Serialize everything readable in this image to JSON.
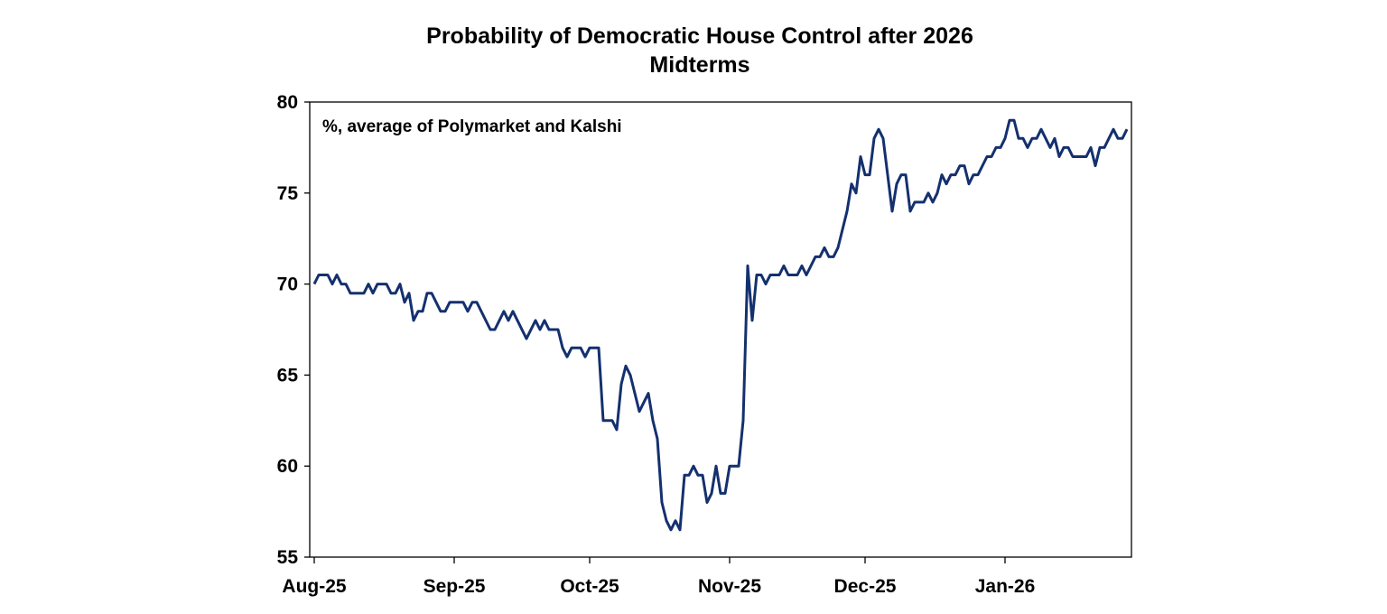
{
  "chart_data": {
    "type": "line",
    "title": "Probability of Democratic House Control after 2026",
    "title_line2": "Midterms",
    "annotation": "%, average of Polymarket and Kalshi",
    "xlabel": "",
    "ylabel": "",
    "ylim": [
      55,
      80
    ],
    "y_ticks": [
      55,
      60,
      65,
      70,
      75,
      80
    ],
    "xlim": [
      "2025-07-31",
      "2026-01-29"
    ],
    "x_ticks": [
      "2025-08-01",
      "2025-09-01",
      "2025-10-01",
      "2025-11-01",
      "2025-12-01",
      "2026-01-01"
    ],
    "x_tick_labels": [
      "Aug-25",
      "Sep-25",
      "Oct-25",
      "Nov-25",
      "Dec-25",
      "Jan-26"
    ],
    "grid": false,
    "line_color": "#14306e",
    "series": [
      {
        "x": [
          "2025-08-01",
          "2025-08-02",
          "2025-08-04",
          "2025-08-05",
          "2025-08-06",
          "2025-08-07",
          "2025-08-08",
          "2025-08-09",
          "2025-08-12",
          "2025-08-13",
          "2025-08-14",
          "2025-08-15",
          "2025-08-17",
          "2025-08-18",
          "2025-08-19",
          "2025-08-20",
          "2025-08-21",
          "2025-08-22",
          "2025-08-23",
          "2025-08-24",
          "2025-08-25",
          "2025-08-26",
          "2025-08-27",
          "2025-08-29",
          "2025-08-30",
          "2025-08-31",
          "2025-09-03",
          "2025-09-04",
          "2025-09-05",
          "2025-09-06",
          "2025-09-09",
          "2025-09-10",
          "2025-09-12",
          "2025-09-13",
          "2025-09-14",
          "2025-09-17",
          "2025-09-19",
          "2025-09-20",
          "2025-09-21",
          "2025-09-22",
          "2025-09-24",
          "2025-09-25",
          "2025-09-26",
          "2025-09-27",
          "2025-09-29",
          "2025-09-30",
          "2025-10-01",
          "2025-10-03",
          "2025-10-04",
          "2025-10-06",
          "2025-10-07",
          "2025-10-08",
          "2025-10-09",
          "2025-10-10",
          "2025-10-12",
          "2025-10-14",
          "2025-10-15",
          "2025-10-16",
          "2025-10-17",
          "2025-10-18",
          "2025-10-19",
          "2025-10-20",
          "2025-10-21",
          "2025-10-22",
          "2025-10-23",
          "2025-10-24",
          "2025-10-25",
          "2025-10-26",
          "2025-10-27",
          "2025-10-28",
          "2025-10-29",
          "2025-10-30",
          "2025-10-31",
          "2025-11-01",
          "2025-11-03",
          "2025-11-04",
          "2025-11-05",
          "2025-11-06",
          "2025-11-07",
          "2025-11-08",
          "2025-11-09",
          "2025-11-10",
          "2025-11-12",
          "2025-11-13",
          "2025-11-14",
          "2025-11-16",
          "2025-11-17",
          "2025-11-18",
          "2025-11-20",
          "2025-11-21",
          "2025-11-22",
          "2025-11-23",
          "2025-11-24",
          "2025-11-25",
          "2025-11-27",
          "2025-11-28",
          "2025-11-29",
          "2025-11-30",
          "2025-12-01",
          "2025-12-02",
          "2025-12-03",
          "2025-12-04",
          "2025-12-05",
          "2025-12-07",
          "2025-12-08",
          "2025-12-09",
          "2025-12-10",
          "2025-12-11",
          "2025-12-12",
          "2025-12-14",
          "2025-12-15",
          "2025-12-16",
          "2025-12-17",
          "2025-12-18",
          "2025-12-19",
          "2025-12-20",
          "2025-12-21",
          "2025-12-22",
          "2025-12-23",
          "2025-12-24",
          "2025-12-25",
          "2025-12-26",
          "2025-12-28",
          "2025-12-29",
          "2025-12-30",
          "2025-12-31",
          "2026-01-01",
          "2026-01-02",
          "2026-01-03",
          "2026-01-04",
          "2026-01-05",
          "2026-01-06",
          "2026-01-07",
          "2026-01-08",
          "2026-01-09",
          "2026-01-10",
          "2026-01-11",
          "2026-01-12",
          "2026-01-13",
          "2026-01-14",
          "2026-01-15",
          "2026-01-16",
          "2026-01-19",
          "2026-01-20",
          "2026-01-21",
          "2026-01-22",
          "2026-01-23",
          "2026-01-25",
          "2026-01-26",
          "2026-01-27",
          "2026-01-28"
        ],
        "y": [
          70,
          70.5,
          70.5,
          70,
          70.5,
          70,
          70,
          69.5,
          69.5,
          70,
          69.5,
          70,
          70,
          69.5,
          69.5,
          70,
          69,
          69.5,
          68,
          68.5,
          68.5,
          69.5,
          69.5,
          68.5,
          68.5,
          69,
          69,
          68.5,
          69,
          69,
          67.5,
          67.5,
          68.5,
          68,
          68.5,
          67,
          68,
          67.5,
          68,
          67.5,
          67.5,
          66.5,
          66,
          66.5,
          66.5,
          66,
          66.5,
          66.5,
          62.5,
          62.5,
          62,
          64.5,
          65.5,
          65,
          63,
          64,
          62.5,
          61.5,
          58,
          57,
          56.5,
          57,
          56.5,
          59.5,
          59.5,
          60,
          59.5,
          59.5,
          58,
          58.5,
          60,
          58.5,
          58.5,
          60,
          60,
          62.5,
          71,
          68,
          70.5,
          70.5,
          70,
          70.5,
          70.5,
          71,
          70.5,
          70.5,
          71,
          70.5,
          71.5,
          71.5,
          72,
          71.5,
          71.5,
          72,
          74,
          75.5,
          75,
          77,
          76,
          76,
          78,
          78.5,
          78,
          74,
          75.5,
          76,
          76,
          74,
          74.5,
          74.5,
          75,
          74.5,
          75,
          76,
          75.5,
          76,
          76,
          76.5,
          76.5,
          75.5,
          76,
          76,
          77,
          77,
          77.5,
          77.5,
          78,
          79,
          79,
          78,
          78,
          77.5,
          78,
          78,
          78.5,
          78,
          77.5,
          78,
          77,
          77.5,
          77.5,
          77,
          77,
          77.5,
          76.5,
          77.5,
          77.5,
          78.5,
          78,
          78,
          78.5
        ]
      }
    ]
  }
}
